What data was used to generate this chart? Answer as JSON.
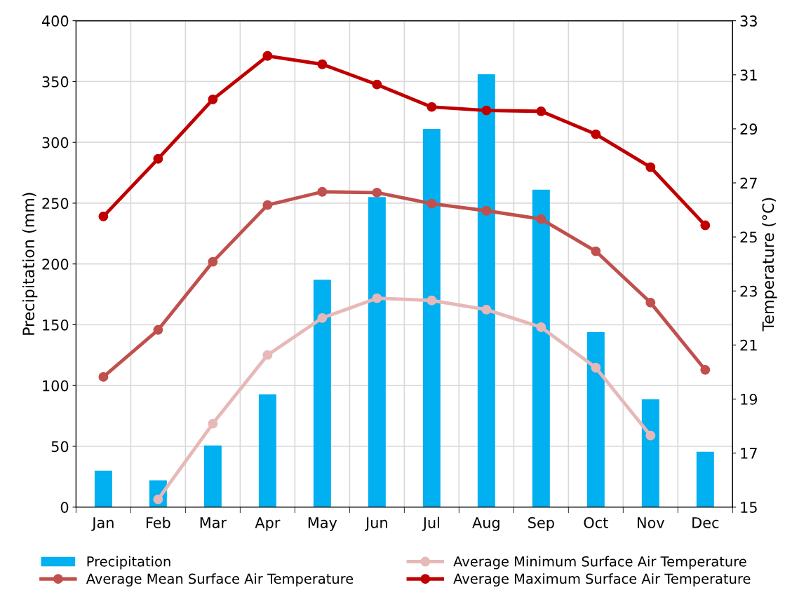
{
  "chart_data": {
    "type": "bar",
    "ylabel": "Precipitation (mm)",
    "y2label": "Temperature (°C)",
    "categories": [
      "Jan",
      "Feb",
      "Mar",
      "Apr",
      "May",
      "Jun",
      "Jul",
      "Aug",
      "Sep",
      "Oct",
      "Nov",
      "Dec"
    ],
    "series": [
      {
        "name": "Precipitation",
        "color": "#00b0f0",
        "values": [
          30,
          22,
          50.7,
          92.8,
          187,
          255,
          311,
          356,
          261,
          144,
          88.8,
          45.5
        ]
      },
      {
        "name": "Average Mean Surface Air Temperature",
        "type": "line",
        "axis": "y2",
        "color": "#c0504d",
        "marker": "circle",
        "values": [
          19.82,
          21.56,
          24.08,
          26.18,
          26.67,
          26.64,
          26.23,
          25.97,
          25.66,
          24.47,
          22.57,
          20.08
        ]
      },
      {
        "name": "Average Minimum Surface Air Temperature",
        "type": "line",
        "axis": "y2",
        "color": "#e6b9b8",
        "marker": "circle",
        "values": [
          null,
          15.29,
          18.09,
          20.63,
          22.0,
          22.73,
          22.65,
          22.31,
          21.66,
          20.16,
          17.65,
          null
        ]
      },
      {
        "name": "Average Maximum Surface Air Temperature",
        "type": "line",
        "axis": "y2",
        "color": "#c00000",
        "marker": "circle",
        "values": [
          25.76,
          27.89,
          30.09,
          31.7,
          31.39,
          30.64,
          29.81,
          29.68,
          29.65,
          28.8,
          27.58,
          25.43
        ]
      }
    ],
    "ylim": [
      0,
      400
    ],
    "yticks": [
      0,
      50,
      100,
      150,
      200,
      250,
      300,
      350,
      400
    ],
    "y2lim": [
      15,
      33
    ],
    "y2ticks": [
      15,
      17,
      19,
      21,
      23,
      25,
      27,
      29,
      31,
      33
    ],
    "grid": true,
    "legend": "bottom",
    "line_style": "solid"
  }
}
